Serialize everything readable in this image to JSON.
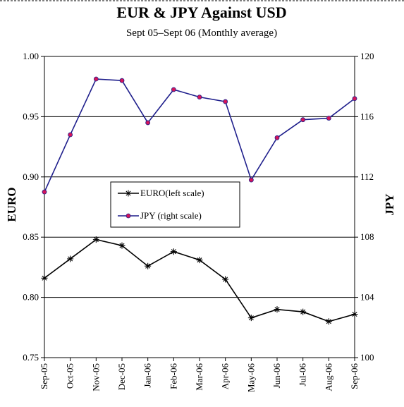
{
  "chart_data": {
    "type": "line",
    "title": "EUR & JPY Against USD",
    "subtitle": "Sept  05–Sept 06 (Monthly  average)",
    "y_label": "EURO",
    "y2_label": "JPY",
    "categories": [
      "Sep-05",
      "Oct-05",
      "Nov-05",
      "Dec-05",
      "Jan-06",
      "Feb-06",
      "Mar-06",
      "Apr-06",
      "May-06",
      "Jun-06",
      "Jul-06",
      "Aug-06",
      "Sep-06"
    ],
    "series": [
      {
        "name": "EURO(left scale)",
        "color": "#000000",
        "marker": "star",
        "values": [
          0.816,
          0.832,
          0.848,
          0.843,
          0.826,
          0.838,
          0.831,
          0.815,
          0.783,
          0.79,
          0.788,
          0.78,
          0.786
        ]
      },
      {
        "name": "JPY (right scale)",
        "color": "#1f1f8c",
        "marker": "circle",
        "marker_color": "#d4145a",
        "axis": "y2",
        "values": [
          111.0,
          114.8,
          118.5,
          118.4,
          115.6,
          117.8,
          117.3,
          117.0,
          111.8,
          114.6,
          115.8,
          115.9,
          117.2
        ]
      }
    ],
    "ylim": [
      0.75,
      1.0
    ],
    "yticks": [
      {
        "value": 0.75,
        "label": "0.75"
      },
      {
        "value": 0.8,
        "label": "0.80"
      },
      {
        "value": 0.85,
        "label": "0.85"
      },
      {
        "value": 0.9,
        "label": "0.90"
      },
      {
        "value": 0.95,
        "label": "0.95"
      },
      {
        "value": 1.0,
        "label": "1.00"
      }
    ],
    "y2lim": [
      100,
      120
    ],
    "y2ticks": [
      100,
      104,
      108,
      112,
      116,
      120
    ],
    "grid": true,
    "legend": "center"
  }
}
